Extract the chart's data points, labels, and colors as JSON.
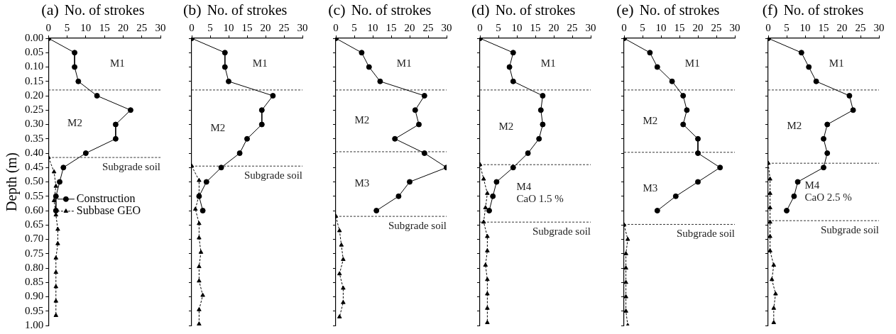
{
  "chart_data": [
    {
      "type": "line",
      "title": "(a)",
      "xlabel": "No. of strokes",
      "ylabel": "Depth (m)",
      "xlim": [
        0,
        30
      ],
      "xticks": [
        0,
        5,
        10,
        15,
        20,
        25,
        30
      ],
      "ylim": [
        1,
        0
      ],
      "yticks": [
        {
          "value": 0,
          "label": "0.00"
        },
        {
          "value": 0.05,
          "label": "0.05"
        },
        {
          "value": 0.1,
          "label": "0.10"
        },
        {
          "value": 0.15,
          "label": "0.15"
        },
        {
          "value": 0.2,
          "label": "0.20"
        },
        {
          "value": 0.25,
          "label": "0.25"
        },
        {
          "value": 0.3,
          "label": "0.30"
        },
        {
          "value": 0.35,
          "label": "0.35"
        },
        {
          "value": 0.4,
          "label": "0.40"
        },
        {
          "value": 0.45,
          "label": "0.45"
        },
        {
          "value": 0.5,
          "label": "0.50"
        },
        {
          "value": 0.55,
          "label": "0.55"
        },
        {
          "value": 0.6,
          "label": "0.60"
        },
        {
          "value": 0.65,
          "label": "0.65"
        },
        {
          "value": 0.7,
          "label": "0.70"
        },
        {
          "value": 0.75,
          "label": "0.75"
        },
        {
          "value": 0.8,
          "label": "0.80"
        },
        {
          "value": 0.85,
          "label": "0.85"
        },
        {
          "value": 0.9,
          "label": "0.90"
        },
        {
          "value": 0.95,
          "label": "0.95"
        },
        {
          "value": 1,
          "label": "1.00"
        }
      ],
      "legend": "left",
      "series": [
        {
          "name": "Construction",
          "color": "#000000",
          "marker": "circle",
          "line_style": "solid",
          "x": [
            0,
            7,
            7,
            8,
            13,
            22,
            18,
            18,
            10,
            4,
            3,
            2,
            2
          ],
          "values": [
            0,
            0.05,
            0.1,
            0.15,
            0.2,
            0.25,
            0.3,
            0.35,
            0.4,
            0.45,
            0.5,
            0.55,
            0.6
          ]
        },
        {
          "name": "Subbase GEO",
          "color": "#000000",
          "marker": "triangle",
          "line_style": "dashed",
          "x": [
            0,
            1.5,
            2,
            1.5,
            2,
            2.5,
            2.5,
            2,
            2,
            2,
            2,
            2
          ],
          "values": [
            0.415,
            0.465,
            0.515,
            0.565,
            0.615,
            0.665,
            0.715,
            0.765,
            0.815,
            0.865,
            0.915,
            0.965
          ]
        }
      ],
      "ref_lines": [
        {
          "axis": "y",
          "value": 0.18,
          "line_style": "dashed"
        },
        {
          "axis": "y",
          "value": 0.415,
          "line_style": "dashed"
        }
      ],
      "annotations": [
        "M1",
        "M2",
        "Subgrade soil"
      ]
    },
    {
      "type": "line",
      "title": "(b)",
      "xlabel": "No. of strokes",
      "xlim": [
        0,
        30
      ],
      "xticks": [
        0,
        5,
        10,
        15,
        20,
        25,
        30
      ],
      "ylim": [
        1,
        0
      ],
      "yticks": [
        {
          "value": 0,
          "label": null
        },
        {
          "value": 0.05,
          "label": null
        },
        {
          "value": 0.1,
          "label": null
        },
        {
          "value": 0.15,
          "label": null
        },
        {
          "value": 0.2,
          "label": null
        },
        {
          "value": 0.25,
          "label": null
        },
        {
          "value": 0.3,
          "label": null
        },
        {
          "value": 0.35,
          "label": null
        },
        {
          "value": 0.4,
          "label": null
        },
        {
          "value": 0.45,
          "label": null
        },
        {
          "value": 0.5,
          "label": null
        },
        {
          "value": 0.55,
          "label": null
        },
        {
          "value": 0.6,
          "label": null
        },
        {
          "value": 0.65,
          "label": null
        },
        {
          "value": 0.7,
          "label": null
        },
        {
          "value": 0.75,
          "label": null
        },
        {
          "value": 0.8,
          "label": null
        },
        {
          "value": 0.85,
          "label": null
        },
        {
          "value": 0.9,
          "label": null
        },
        {
          "value": 0.95,
          "label": null
        },
        {
          "value": 1,
          "label": null
        }
      ],
      "tick_labels": "x",
      "series": [
        {
          "color": "#000000",
          "marker": "circle",
          "line_style": "solid",
          "x": [
            0,
            9,
            9,
            10,
            22,
            19,
            19,
            15,
            13,
            8,
            4,
            2,
            3
          ],
          "values": [
            0,
            0.05,
            0.1,
            0.15,
            0.2,
            0.25,
            0.3,
            0.35,
            0.4,
            0.45,
            0.5,
            0.55,
            0.6
          ]
        },
        {
          "color": "#000000",
          "marker": "triangle",
          "line_style": "dashed",
          "x": [
            0,
            2,
            2,
            1,
            2,
            2,
            2.5,
            2,
            2,
            3,
            2,
            2
          ],
          "values": [
            0.445,
            0.495,
            0.545,
            0.595,
            0.645,
            0.695,
            0.745,
            0.795,
            0.845,
            0.895,
            0.945,
            0.995
          ]
        }
      ],
      "ref_lines": [
        {
          "axis": "y",
          "value": 0.18,
          "line_style": "dashed"
        },
        {
          "axis": "y",
          "value": 0.445,
          "line_style": "dashed"
        }
      ],
      "annotations": [
        "M1",
        "M2",
        "Subgrade soil"
      ]
    },
    {
      "type": "line",
      "title": "(c)",
      "xlabel": "No. of strokes",
      "xlim": [
        0,
        30
      ],
      "xticks": [
        0,
        5,
        10,
        15,
        20,
        25,
        30
      ],
      "ylim": [
        1,
        0
      ],
      "yticks": [
        {
          "value": 0,
          "label": null
        },
        {
          "value": 0.05,
          "label": null
        },
        {
          "value": 0.1,
          "label": null
        },
        {
          "value": 0.15,
          "label": null
        },
        {
          "value": 0.2,
          "label": null
        },
        {
          "value": 0.25,
          "label": null
        },
        {
          "value": 0.3,
          "label": null
        },
        {
          "value": 0.35,
          "label": null
        },
        {
          "value": 0.4,
          "label": null
        },
        {
          "value": 0.45,
          "label": null
        },
        {
          "value": 0.5,
          "label": null
        },
        {
          "value": 0.55,
          "label": null
        },
        {
          "value": 0.6,
          "label": null
        },
        {
          "value": 0.65,
          "label": null
        },
        {
          "value": 0.7,
          "label": null
        },
        {
          "value": 0.75,
          "label": null
        },
        {
          "value": 0.8,
          "label": null
        },
        {
          "value": 0.85,
          "label": null
        },
        {
          "value": 0.9,
          "label": null
        },
        {
          "value": 0.95,
          "label": null
        },
        {
          "value": 1,
          "label": null
        }
      ],
      "tick_labels": "x",
      "series": [
        {
          "color": "#000000",
          "marker": "circle",
          "line_style": "solid",
          "x": [
            0,
            7,
            9,
            12,
            24,
            21.5,
            22.5,
            16,
            24,
            30,
            20,
            17,
            11
          ],
          "values": [
            0,
            0.05,
            0.1,
            0.15,
            0.2,
            0.25,
            0.3,
            0.35,
            0.4,
            0.45,
            0.5,
            0.55,
            0.6
          ]
        },
        {
          "color": "#000000",
          "marker": "triangle",
          "line_style": "dashed",
          "x": [
            0,
            1,
            1.5,
            2,
            1,
            2,
            2,
            1
          ],
          "values": [
            0.62,
            0.67,
            0.72,
            0.77,
            0.82,
            0.87,
            0.92,
            0.97
          ]
        }
      ],
      "ref_lines": [
        {
          "axis": "y",
          "value": 0.18,
          "line_style": "dashed"
        },
        {
          "axis": "y",
          "value": 0.395,
          "line_style": "dashed"
        },
        {
          "axis": "y",
          "value": 0.62,
          "line_style": "dashed"
        }
      ],
      "annotations": [
        "M1",
        "M2",
        "M3",
        "Subgrade soil"
      ]
    },
    {
      "type": "line",
      "title": "(d)",
      "xlabel": "No. of strokes",
      "xlim": [
        0,
        30
      ],
      "xticks": [
        0,
        5,
        10,
        15,
        20,
        25,
        30
      ],
      "ylim": [
        1,
        0
      ],
      "yticks": [
        {
          "value": 0,
          "label": null
        },
        {
          "value": 0.05,
          "label": null
        },
        {
          "value": 0.1,
          "label": null
        },
        {
          "value": 0.15,
          "label": null
        },
        {
          "value": 0.2,
          "label": null
        },
        {
          "value": 0.25,
          "label": null
        },
        {
          "value": 0.3,
          "label": null
        },
        {
          "value": 0.35,
          "label": null
        },
        {
          "value": 0.4,
          "label": null
        },
        {
          "value": 0.45,
          "label": null
        },
        {
          "value": 0.5,
          "label": null
        },
        {
          "value": 0.55,
          "label": null
        },
        {
          "value": 0.6,
          "label": null
        },
        {
          "value": 0.65,
          "label": null
        },
        {
          "value": 0.7,
          "label": null
        },
        {
          "value": 0.75,
          "label": null
        },
        {
          "value": 0.8,
          "label": null
        },
        {
          "value": 0.85,
          "label": null
        },
        {
          "value": 0.9,
          "label": null
        },
        {
          "value": 0.95,
          "label": null
        },
        {
          "value": 1,
          "label": null
        }
      ],
      "tick_labels": "x",
      "series": [
        {
          "color": "#000000",
          "marker": "circle",
          "line_style": "solid",
          "x": [
            0,
            9,
            8,
            9,
            17,
            16.5,
            17,
            16,
            13,
            9,
            4.5,
            3.5,
            2.5
          ],
          "values": [
            0,
            0.05,
            0.1,
            0.15,
            0.2,
            0.25,
            0.3,
            0.35,
            0.4,
            0.45,
            0.5,
            0.55,
            0.6
          ]
        },
        {
          "color": "#000000",
          "marker": "triangle",
          "line_style": "dashed",
          "x": [
            0,
            1,
            2,
            1.5,
            1,
            2,
            2,
            1.5,
            2,
            2,
            2,
            2
          ],
          "values": [
            0.44,
            0.49,
            0.54,
            0.59,
            0.64,
            0.69,
            0.74,
            0.79,
            0.84,
            0.89,
            0.94,
            0.99
          ]
        }
      ],
      "ref_lines": [
        {
          "axis": "y",
          "value": 0.18,
          "line_style": "dashed"
        },
        {
          "axis": "y",
          "value": 0.44,
          "line_style": "dashed"
        },
        {
          "axis": "y",
          "value": 0.64,
          "line_style": "dashed"
        }
      ],
      "annotations": [
        "M1",
        "M2",
        "M4\nCaO 1.5 %",
        "Subgrade soil"
      ]
    },
    {
      "type": "line",
      "title": "(e)",
      "xlabel": "No. of strokes",
      "xlim": [
        0,
        30
      ],
      "xticks": [
        0,
        5,
        10,
        15,
        20,
        25,
        30
      ],
      "ylim": [
        1,
        0
      ],
      "yticks": [
        {
          "value": 0,
          "label": null
        },
        {
          "value": 0.05,
          "label": null
        },
        {
          "value": 0.1,
          "label": null
        },
        {
          "value": 0.15,
          "label": null
        },
        {
          "value": 0.2,
          "label": null
        },
        {
          "value": 0.25,
          "label": null
        },
        {
          "value": 0.3,
          "label": null
        },
        {
          "value": 0.35,
          "label": null
        },
        {
          "value": 0.4,
          "label": null
        },
        {
          "value": 0.45,
          "label": null
        },
        {
          "value": 0.5,
          "label": null
        },
        {
          "value": 0.55,
          "label": null
        },
        {
          "value": 0.6,
          "label": null
        },
        {
          "value": 0.65,
          "label": null
        },
        {
          "value": 0.7,
          "label": null
        },
        {
          "value": 0.75,
          "label": null
        },
        {
          "value": 0.8,
          "label": null
        },
        {
          "value": 0.85,
          "label": null
        },
        {
          "value": 0.9,
          "label": null
        },
        {
          "value": 0.95,
          "label": null
        },
        {
          "value": 1,
          "label": null
        }
      ],
      "tick_labels": "x",
      "series": [
        {
          "color": "#000000",
          "marker": "circle",
          "line_style": "solid",
          "x": [
            0,
            7,
            9,
            13,
            16,
            17,
            16,
            20,
            20,
            26,
            20,
            14,
            9
          ],
          "values": [
            0,
            0.05,
            0.1,
            0.15,
            0.2,
            0.25,
            0.3,
            0.35,
            0.4,
            0.45,
            0.5,
            0.55,
            0.6
          ]
        },
        {
          "color": "#000000",
          "marker": "triangle",
          "line_style": "dashed",
          "x": [
            0,
            1,
            0.5,
            0.5,
            0.5,
            0.5,
            0.5,
            1
          ],
          "values": [
            0.65,
            0.7,
            0.75,
            0.8,
            0.85,
            0.9,
            0.95,
            1
          ]
        }
      ],
      "ref_lines": [
        {
          "axis": "y",
          "value": 0.18,
          "line_style": "dashed"
        },
        {
          "axis": "y",
          "value": 0.397,
          "line_style": "dashed"
        },
        {
          "axis": "y",
          "value": 0.648,
          "line_style": "dashed"
        }
      ],
      "annotations": [
        "M1",
        "M2",
        "M3",
        "Subgrade soil"
      ]
    },
    {
      "type": "line",
      "title": "(f)",
      "xlabel": "No. of strokes",
      "xlim": [
        0,
        30
      ],
      "xticks": [
        0,
        5,
        10,
        15,
        20,
        25,
        30
      ],
      "ylim": [
        1,
        0
      ],
      "yticks": [
        {
          "value": 0,
          "label": null
        },
        {
          "value": 0.05,
          "label": null
        },
        {
          "value": 0.1,
          "label": null
        },
        {
          "value": 0.15,
          "label": null
        },
        {
          "value": 0.2,
          "label": null
        },
        {
          "value": 0.25,
          "label": null
        },
        {
          "value": 0.3,
          "label": null
        },
        {
          "value": 0.35,
          "label": null
        },
        {
          "value": 0.4,
          "label": null
        },
        {
          "value": 0.45,
          "label": null
        },
        {
          "value": 0.5,
          "label": null
        },
        {
          "value": 0.55,
          "label": null
        },
        {
          "value": 0.6,
          "label": null
        },
        {
          "value": 0.65,
          "label": null
        },
        {
          "value": 0.7,
          "label": null
        },
        {
          "value": 0.75,
          "label": null
        },
        {
          "value": 0.8,
          "label": null
        },
        {
          "value": 0.85,
          "label": null
        },
        {
          "value": 0.9,
          "label": null
        },
        {
          "value": 0.95,
          "label": null
        },
        {
          "value": 1,
          "label": null
        }
      ],
      "tick_labels": "x",
      "series": [
        {
          "color": "#000000",
          "marker": "circle",
          "line_style": "solid",
          "x": [
            0,
            9,
            11,
            13,
            22,
            23,
            16,
            15,
            16,
            15,
            8,
            7,
            5
          ],
          "values": [
            0,
            0.05,
            0.1,
            0.15,
            0.2,
            0.25,
            0.3,
            0.35,
            0.4,
            0.45,
            0.5,
            0.55,
            0.6
          ]
        },
        {
          "color": "#000000",
          "marker": "triangle",
          "line_style": "dashed",
          "x": [
            0,
            0.5,
            0.5,
            0.5,
            0.5,
            0.5,
            0.5,
            1.5,
            1,
            2,
            1.5,
            1.5
          ],
          "values": [
            0.435,
            0.49,
            0.54,
            0.59,
            0.64,
            0.69,
            0.74,
            0.79,
            0.84,
            0.89,
            0.94,
            0.99
          ]
        }
      ],
      "ref_lines": [
        {
          "axis": "y",
          "value": 0.18,
          "line_style": "dashed"
        },
        {
          "axis": "y",
          "value": 0.435,
          "line_style": "dashed"
        },
        {
          "axis": "y",
          "value": 0.635,
          "line_style": "dashed"
        }
      ],
      "annotations": [
        "M1",
        "M2",
        "M4\nCaO 2.5 %",
        "Subgrade soil"
      ]
    }
  ]
}
